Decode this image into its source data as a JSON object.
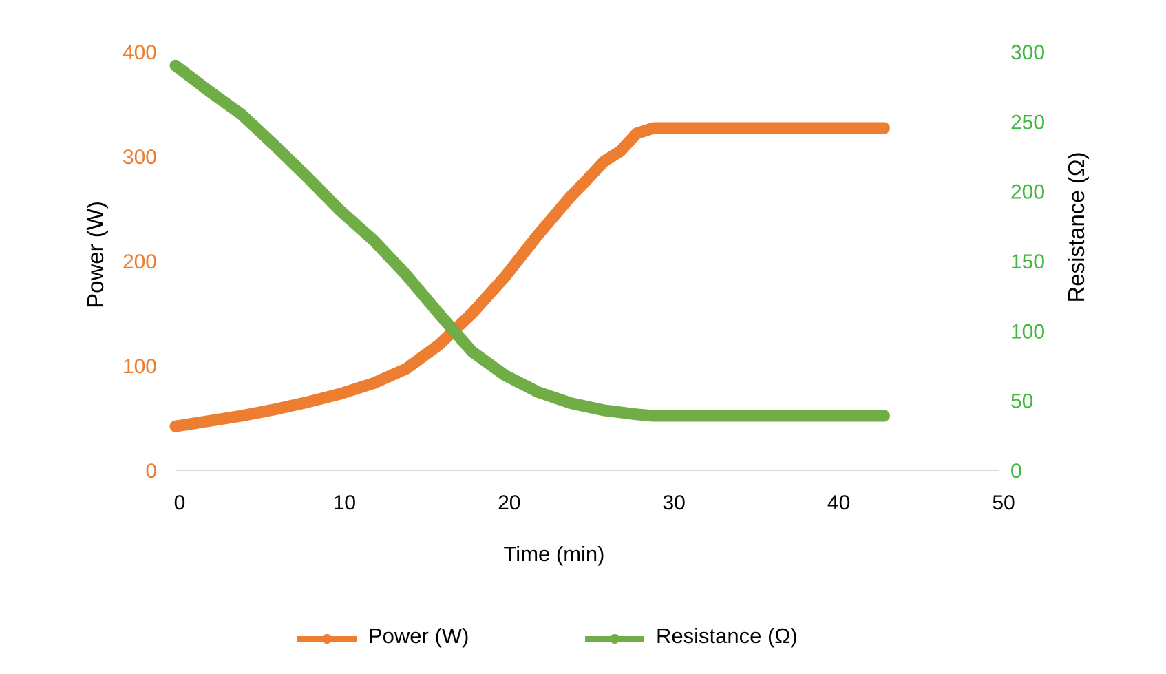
{
  "chart_data": {
    "type": "line",
    "title": "",
    "xlabel": "Time (min)",
    "ylabel_left": "Power (W)",
    "ylabel_right": "Resistance (Ω)",
    "xlim": [
      0,
      50
    ],
    "ylim_left": [
      0,
      400
    ],
    "ylim_right": [
      0,
      300
    ],
    "x_ticks": [
      "0",
      "10",
      "20",
      "30",
      "40",
      "50"
    ],
    "y_ticks_left": [
      "0",
      "100",
      "200",
      "300",
      "400"
    ],
    "y_ticks_right": [
      "0",
      "50",
      "100",
      "150",
      "200",
      "250",
      "300"
    ],
    "grid": false,
    "legend_position": "bottom",
    "colors": {
      "power": "#ED7D31",
      "resistance": "#70AD47",
      "left_ticks": "#ED7D31",
      "right_ticks": "#3CB83C"
    },
    "series": [
      {
        "name": "Power (W)",
        "axis": "left",
        "x": [
          0,
          2,
          4,
          6,
          8,
          10,
          12,
          14,
          16,
          18,
          20,
          22,
          24,
          25,
          26,
          27,
          28,
          29,
          35,
          43
        ],
        "y": [
          42,
          47,
          52,
          58,
          65,
          73,
          83,
          97,
          120,
          150,
          185,
          225,
          262,
          278,
          295,
          305,
          322,
          327,
          327,
          327
        ]
      },
      {
        "name": "Resistance (Ω)",
        "axis": "right",
        "x": [
          0,
          2,
          4,
          6,
          8,
          10,
          12,
          14,
          16,
          18,
          20,
          22,
          24,
          26,
          28,
          29,
          35,
          43
        ],
        "y": [
          290,
          272,
          255,
          233,
          210,
          186,
          165,
          140,
          112,
          85,
          68,
          56,
          48,
          43,
          40,
          39,
          39,
          39
        ]
      }
    ]
  }
}
